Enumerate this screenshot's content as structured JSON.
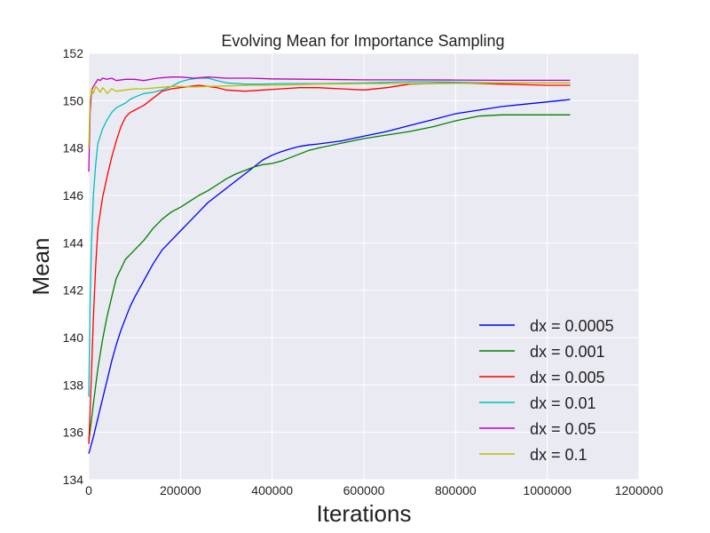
{
  "chart_data": {
    "type": "line",
    "title": "Evolving Mean for Importance Sampling",
    "xlabel": "Iterations",
    "ylabel": "Mean",
    "xlim": [
      0,
      1200000
    ],
    "ylim": [
      134,
      152
    ],
    "xticks": [
      0,
      200000,
      400000,
      600000,
      800000,
      1000000,
      1200000
    ],
    "xtick_labels": [
      "0",
      "200000",
      "400000",
      "600000",
      "800000",
      "1000000",
      "1200000"
    ],
    "yticks": [
      134,
      136,
      138,
      140,
      142,
      144,
      146,
      148,
      150,
      152
    ],
    "ytick_labels": [
      "134",
      "136",
      "138",
      "140",
      "142",
      "144",
      "146",
      "148",
      "150",
      "152"
    ],
    "grid": true,
    "legend_position": "lower-right",
    "background": "#eaeaf2",
    "series": [
      {
        "name": "dx = 0.0005",
        "color": "#0000ff",
        "x": [
          0,
          10000,
          20000,
          30000,
          40000,
          50000,
          60000,
          70000,
          80000,
          90000,
          100000,
          120000,
          140000,
          160000,
          180000,
          200000,
          220000,
          240000,
          260000,
          280000,
          300000,
          320000,
          340000,
          360000,
          380000,
          400000,
          420000,
          440000,
          460000,
          480000,
          500000,
          550000,
          600000,
          650000,
          700000,
          750000,
          800000,
          850000,
          900000,
          950000,
          1000000,
          1050000
        ],
        "y": [
          135.1,
          135.8,
          136.6,
          137.4,
          138.2,
          139.0,
          139.7,
          140.3,
          140.8,
          141.3,
          141.7,
          142.4,
          143.1,
          143.7,
          144.1,
          144.5,
          144.9,
          145.3,
          145.7,
          146.0,
          146.3,
          146.6,
          146.9,
          147.2,
          147.5,
          147.7,
          147.85,
          147.97,
          148.07,
          148.13,
          148.17,
          148.3,
          148.5,
          148.7,
          148.95,
          149.2,
          149.45,
          149.6,
          149.75,
          149.85,
          149.95,
          150.05
        ]
      },
      {
        "name": "dx = 0.001",
        "color": "#008000",
        "x": [
          0,
          10000,
          20000,
          30000,
          40000,
          50000,
          60000,
          70000,
          80000,
          90000,
          100000,
          120000,
          140000,
          160000,
          180000,
          200000,
          220000,
          240000,
          260000,
          280000,
          300000,
          320000,
          340000,
          360000,
          380000,
          400000,
          420000,
          440000,
          460000,
          480000,
          500000,
          550000,
          600000,
          650000,
          700000,
          750000,
          800000,
          850000,
          900000,
          950000,
          1000000,
          1050000
        ],
        "y": [
          135.6,
          137.2,
          138.7,
          139.9,
          140.9,
          141.7,
          142.5,
          142.9,
          143.3,
          143.5,
          143.7,
          144.1,
          144.6,
          145.0,
          145.3,
          145.5,
          145.75,
          146.0,
          146.2,
          146.45,
          146.7,
          146.9,
          147.05,
          147.2,
          147.3,
          147.35,
          147.45,
          147.6,
          147.75,
          147.9,
          148.0,
          148.2,
          148.4,
          148.55,
          148.7,
          148.9,
          149.15,
          149.35,
          149.4,
          149.4,
          149.4,
          149.4
        ]
      },
      {
        "name": "dx = 0.005",
        "color": "#ff0000",
        "x": [
          0,
          5000,
          10000,
          15000,
          20000,
          30000,
          40000,
          50000,
          60000,
          70000,
          80000,
          90000,
          100000,
          110000,
          120000,
          140000,
          160000,
          180000,
          200000,
          220000,
          240000,
          260000,
          280000,
          300000,
          340000,
          380000,
          420000,
          460000,
          500000,
          550000,
          600000,
          650000,
          700000,
          800000,
          900000,
          1000000,
          1050000
        ],
        "y": [
          135.5,
          138.0,
          140.8,
          143.0,
          144.6,
          145.9,
          146.8,
          147.6,
          148.3,
          148.9,
          149.3,
          149.5,
          149.6,
          149.7,
          149.8,
          150.1,
          150.4,
          150.5,
          150.55,
          150.6,
          150.65,
          150.6,
          150.55,
          150.45,
          150.4,
          150.45,
          150.5,
          150.55,
          150.55,
          150.5,
          150.45,
          150.55,
          150.7,
          150.75,
          150.7,
          150.65,
          150.65
        ]
      },
      {
        "name": "dx = 0.01",
        "color": "#00bfbf",
        "x": [
          0,
          3000,
          6000,
          10000,
          15000,
          20000,
          30000,
          40000,
          50000,
          60000,
          70000,
          80000,
          90000,
          100000,
          120000,
          140000,
          160000,
          180000,
          200000,
          220000,
          240000,
          260000,
          280000,
          300000,
          340000,
          380000,
          420000,
          460000,
          500000,
          600000,
          700000,
          800000,
          900000,
          1000000,
          1050000
        ],
        "y": [
          137.5,
          141.5,
          144.0,
          146.0,
          147.3,
          148.2,
          148.8,
          149.2,
          149.5,
          149.7,
          149.8,
          149.9,
          150.05,
          150.15,
          150.3,
          150.35,
          150.45,
          150.6,
          150.8,
          150.9,
          150.95,
          150.95,
          150.85,
          150.75,
          150.7,
          150.7,
          150.72,
          150.72,
          150.72,
          150.75,
          150.8,
          150.78,
          150.75,
          150.75,
          150.75
        ]
      },
      {
        "name": "dx = 0.05",
        "color": "#bf00bf",
        "x": [
          0,
          3000,
          6000,
          10000,
          15000,
          20000,
          25000,
          30000,
          40000,
          50000,
          60000,
          80000,
          100000,
          120000,
          150000,
          180000,
          200000,
          230000,
          260000,
          300000,
          350000,
          400000,
          500000,
          600000,
          700000,
          800000,
          900000,
          1000000,
          1050000
        ],
        "y": [
          147.0,
          149.5,
          150.4,
          150.6,
          150.75,
          150.9,
          150.85,
          150.95,
          150.9,
          150.95,
          150.85,
          150.9,
          150.9,
          150.85,
          150.95,
          151.0,
          151.0,
          150.95,
          151.0,
          150.95,
          150.95,
          150.92,
          150.9,
          150.88,
          150.88,
          150.87,
          150.86,
          150.86,
          150.86
        ]
      },
      {
        "name": "dx = 0.1",
        "color": "#bfbf00",
        "x": [
          0,
          3000,
          6000,
          10000,
          15000,
          20000,
          25000,
          30000,
          35000,
          40000,
          50000,
          60000,
          80000,
          100000,
          120000,
          150000,
          180000,
          200000,
          230000,
          260000,
          300000,
          350000,
          400000,
          500000,
          600000,
          700000,
          800000,
          900000,
          1000000,
          1050000
        ],
        "y": [
          148.0,
          150.0,
          150.5,
          150.3,
          150.6,
          150.5,
          150.35,
          150.55,
          150.45,
          150.3,
          150.5,
          150.4,
          150.45,
          150.5,
          150.5,
          150.55,
          150.6,
          150.6,
          150.58,
          150.6,
          150.62,
          150.65,
          150.65,
          150.7,
          150.72,
          150.72,
          150.73,
          150.75,
          150.75,
          150.75
        ]
      }
    ]
  }
}
